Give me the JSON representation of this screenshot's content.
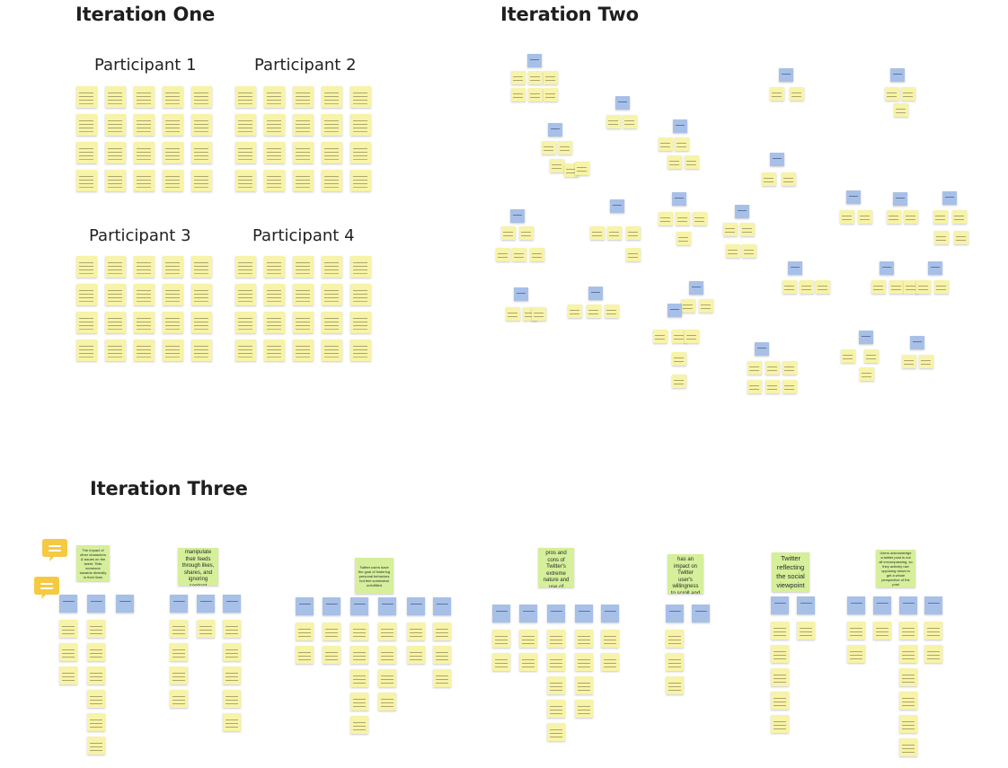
{
  "board": {
    "iteration_one": {
      "title": "Iteration One",
      "participants": [
        "Participant 1",
        "Participant 2",
        "Participant 3",
        "Participant 4"
      ]
    },
    "iteration_two": {
      "title": "Iteration Two"
    },
    "iteration_three": {
      "title": "Iteration Three",
      "themes": [
        "The impact of other characters & issues on the tweet. Tells someone towards diversity in their lives",
        "Twitter users manipulate their feeds through likes, shares, and ignoring content",
        "Twitter users have the goal of fostering personal behaviors but feel somewhat unfulfilled",
        "Users are aware of the pros and cons of Twitter's extreme nature and use of headlines.",
        "Time of day and routine has an impact on Twitter user's willingness to scroll and interact.",
        "Twitter reflecting the social viewpoint",
        "Users acknowledge a twitter post is not all encompassing, so they actively use opposing views to get a whole perspective of the post"
      ]
    }
  },
  "icons": {
    "comment": "comment-icon"
  },
  "colors": {
    "sticky_yellow": "#f7f3a8",
    "sticky_blue": "#a7c0e8",
    "sticky_green": "#d5ef9a",
    "comment_icon": "#f5c941"
  }
}
